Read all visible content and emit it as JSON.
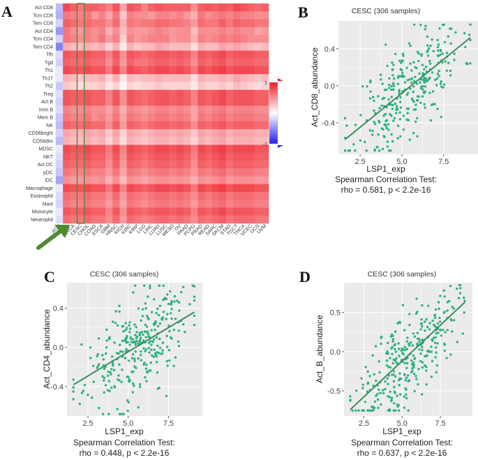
{
  "panel_labels": {
    "A": "A",
    "B": "B",
    "C": "C",
    "D": "D"
  },
  "colors": {
    "point": "#2bb07f",
    "line": "#3c8c5a",
    "high": "#ee1c25",
    "low": "#1f1fe6",
    "mid": "#ffffff",
    "arrow": "#4e8a32",
    "panel_bg": "#ebebeb",
    "grid": "#ffffff"
  },
  "chart_data": [
    {
      "id": "A",
      "type": "heatmap",
      "title": "",
      "rows": [
        "Act CD8",
        "Tcm CD8",
        "Tem CD8",
        "Act CD4",
        "Tcm CD4",
        "Tem CD4",
        "Tfh",
        "Tgd",
        "Th1",
        "Th17",
        "Th2",
        "Treg",
        "Act B",
        "Imm B",
        "Mem B",
        "NK",
        "CD56bright",
        "CD56dim",
        "MDSC",
        "NKT",
        "Act DC",
        "pDC",
        "iDC",
        "Macrophage",
        "Eosinophil",
        "Mast",
        "Monocyte",
        "Neutrophil"
      ],
      "columns": [
        "ACC",
        "BLCA",
        "BRCA",
        "CESC",
        "CHOL",
        "COAD",
        "ESCA",
        "GBM",
        "HNSC",
        "KICH",
        "KIRC",
        "KIRP",
        "LGG",
        "LIHC",
        "LUAD",
        "LUSC",
        "MESO",
        "OV",
        "PAAD",
        "PCPG",
        "PRAD",
        "READ",
        "SARC",
        "SKCM",
        "STAD",
        "TGCT",
        "THCA",
        "UCEC",
        "UCS",
        "UVM"
      ],
      "highlight_columns": [
        "CESC"
      ],
      "legend_max": "1",
      "legend_min": "-1",
      "value_range": [
        -1,
        1
      ],
      "values": [
        [
          -0.3,
          0.8,
          0.7,
          0.6,
          0.7,
          0.7,
          0.65,
          0.55,
          0.75,
          0.4,
          0.75,
          0.7,
          0.55,
          0.7,
          0.75,
          0.7,
          0.7,
          0.7,
          0.7,
          0.5,
          0.7,
          0.75,
          0.7,
          0.75,
          0.7,
          0.8,
          0.75,
          0.7,
          0.65,
          0.7
        ],
        [
          -0.35,
          0.6,
          0.55,
          0.55,
          0.6,
          0.45,
          0.55,
          0.4,
          0.6,
          0.25,
          0.55,
          0.5,
          0.5,
          0.45,
          0.55,
          0.55,
          0.5,
          0.55,
          0.45,
          0.35,
          0.6,
          0.5,
          0.55,
          0.6,
          0.55,
          0.6,
          0.55,
          0.55,
          0.5,
          0.5
        ],
        [
          -0.2,
          0.7,
          0.65,
          0.6,
          0.65,
          0.6,
          0.6,
          0.5,
          0.65,
          0.35,
          0.6,
          0.55,
          0.6,
          0.6,
          0.65,
          0.65,
          0.6,
          0.6,
          0.55,
          0.45,
          0.65,
          0.6,
          0.6,
          0.7,
          0.6,
          0.7,
          0.65,
          0.65,
          0.6,
          0.6
        ],
        [
          -0.45,
          0.6,
          0.5,
          0.45,
          0.55,
          0.5,
          0.55,
          0.35,
          0.5,
          0.3,
          0.5,
          0.45,
          0.45,
          0.5,
          0.55,
          0.5,
          0.45,
          0.5,
          0.5,
          0.3,
          0.5,
          0.5,
          0.5,
          0.55,
          0.5,
          0.55,
          0.5,
          0.5,
          0.4,
          0.45
        ],
        [
          -0.2,
          0.6,
          0.55,
          0.5,
          0.55,
          0.5,
          0.6,
          0.45,
          0.55,
          0.2,
          0.55,
          0.45,
          0.5,
          0.55,
          0.55,
          0.55,
          0.45,
          0.5,
          0.5,
          0.35,
          0.55,
          0.5,
          0.55,
          0.6,
          0.55,
          0.6,
          0.55,
          0.5,
          0.5,
          0.5
        ],
        [
          -0.55,
          0.35,
          0.3,
          0.3,
          0.35,
          0.3,
          0.35,
          0.2,
          0.35,
          0.1,
          0.35,
          0.25,
          0.3,
          0.3,
          0.4,
          0.35,
          0.3,
          0.3,
          0.3,
          0.15,
          0.35,
          0.3,
          0.3,
          0.4,
          0.35,
          0.4,
          0.35,
          0.3,
          0.25,
          0.3
        ],
        [
          -0.15,
          0.75,
          0.7,
          0.7,
          0.75,
          0.7,
          0.7,
          0.55,
          0.75,
          0.5,
          0.75,
          0.7,
          0.65,
          0.7,
          0.75,
          0.75,
          0.7,
          0.75,
          0.7,
          0.55,
          0.75,
          0.7,
          0.75,
          0.8,
          0.7,
          0.75,
          0.75,
          0.75,
          0.7,
          0.7
        ],
        [
          -0.2,
          0.7,
          0.65,
          0.65,
          0.7,
          0.65,
          0.65,
          0.5,
          0.7,
          0.45,
          0.7,
          0.6,
          0.6,
          0.65,
          0.7,
          0.7,
          0.65,
          0.7,
          0.65,
          0.5,
          0.7,
          0.65,
          0.7,
          0.75,
          0.65,
          0.7,
          0.7,
          0.7,
          0.65,
          0.65
        ],
        [
          -0.1,
          0.8,
          0.75,
          0.75,
          0.8,
          0.75,
          0.75,
          0.6,
          0.8,
          0.55,
          0.8,
          0.75,
          0.7,
          0.75,
          0.8,
          0.8,
          0.75,
          0.8,
          0.75,
          0.6,
          0.8,
          0.75,
          0.8,
          0.85,
          0.75,
          0.8,
          0.8,
          0.8,
          0.75,
          0.75
        ],
        [
          -0.1,
          0.35,
          0.3,
          0.25,
          0.3,
          0.3,
          0.35,
          0.2,
          0.35,
          0.1,
          0.3,
          0.25,
          0.3,
          0.3,
          0.35,
          0.3,
          0.3,
          0.3,
          0.3,
          0.15,
          0.35,
          0.3,
          0.3,
          0.35,
          0.3,
          0.4,
          0.35,
          0.3,
          0.25,
          0.3
        ],
        [
          -0.25,
          0.25,
          0.2,
          0.15,
          0.2,
          0.2,
          0.25,
          0.1,
          0.2,
          0.05,
          0.2,
          0.15,
          0.2,
          0.2,
          0.25,
          0.2,
          0.2,
          0.2,
          0.2,
          0.1,
          0.25,
          0.2,
          0.2,
          0.25,
          0.2,
          0.3,
          0.25,
          0.2,
          0.15,
          0.2
        ],
        [
          -0.15,
          0.75,
          0.7,
          0.7,
          0.75,
          0.7,
          0.7,
          0.55,
          0.75,
          0.5,
          0.75,
          0.7,
          0.65,
          0.7,
          0.75,
          0.75,
          0.7,
          0.75,
          0.7,
          0.55,
          0.75,
          0.7,
          0.75,
          0.8,
          0.7,
          0.75,
          0.75,
          0.75,
          0.7,
          0.7
        ],
        [
          -0.2,
          0.75,
          0.7,
          0.7,
          0.75,
          0.7,
          0.7,
          0.55,
          0.75,
          0.5,
          0.75,
          0.7,
          0.65,
          0.7,
          0.75,
          0.75,
          0.7,
          0.75,
          0.7,
          0.55,
          0.75,
          0.7,
          0.75,
          0.8,
          0.7,
          0.75,
          0.75,
          0.75,
          0.7,
          0.7
        ],
        [
          -0.15,
          0.55,
          0.5,
          0.5,
          0.55,
          0.5,
          0.5,
          0.4,
          0.55,
          0.35,
          0.55,
          0.5,
          0.45,
          0.5,
          0.55,
          0.55,
          0.5,
          0.55,
          0.5,
          0.4,
          0.55,
          0.5,
          0.55,
          0.6,
          0.5,
          0.55,
          0.55,
          0.55,
          0.5,
          0.5
        ],
        [
          -0.25,
          0.6,
          0.55,
          0.55,
          0.6,
          0.5,
          0.55,
          0.45,
          0.6,
          0.4,
          0.6,
          0.55,
          0.5,
          0.55,
          0.6,
          0.6,
          0.55,
          0.6,
          0.55,
          0.4,
          0.6,
          0.55,
          0.6,
          0.65,
          0.55,
          0.6,
          0.6,
          0.6,
          0.55,
          0.55
        ],
        [
          -0.3,
          0.7,
          0.65,
          0.65,
          0.7,
          0.65,
          0.65,
          0.5,
          0.7,
          0.45,
          0.7,
          0.65,
          0.6,
          0.65,
          0.7,
          0.7,
          0.65,
          0.7,
          0.65,
          0.5,
          0.7,
          0.65,
          0.7,
          0.75,
          0.65,
          0.7,
          0.7,
          0.7,
          0.65,
          0.65
        ],
        [
          -0.2,
          0.4,
          0.35,
          0.35,
          0.4,
          0.35,
          0.4,
          0.25,
          0.4,
          0.2,
          0.4,
          0.35,
          0.3,
          0.35,
          0.4,
          0.4,
          0.35,
          0.4,
          0.35,
          0.25,
          0.4,
          0.35,
          0.4,
          0.45,
          0.35,
          0.4,
          0.4,
          0.4,
          0.35,
          0.35
        ],
        [
          -0.3,
          0.35,
          0.3,
          0.3,
          0.35,
          0.3,
          0.35,
          0.2,
          0.35,
          0.15,
          0.35,
          0.3,
          0.25,
          0.3,
          0.35,
          0.35,
          0.3,
          0.35,
          0.3,
          0.2,
          0.35,
          0.3,
          0.35,
          0.4,
          0.3,
          0.35,
          0.35,
          0.35,
          0.3,
          0.3
        ],
        [
          -0.1,
          0.8,
          0.75,
          0.75,
          0.8,
          0.75,
          0.75,
          0.6,
          0.8,
          0.55,
          0.8,
          0.75,
          0.7,
          0.75,
          0.8,
          0.8,
          0.75,
          0.8,
          0.75,
          0.6,
          0.8,
          0.75,
          0.8,
          0.85,
          0.75,
          0.8,
          0.8,
          0.8,
          0.75,
          0.75
        ],
        [
          -0.15,
          0.75,
          0.7,
          0.7,
          0.75,
          0.7,
          0.7,
          0.55,
          0.75,
          0.5,
          0.75,
          0.7,
          0.65,
          0.7,
          0.75,
          0.75,
          0.7,
          0.75,
          0.7,
          0.55,
          0.75,
          0.7,
          0.75,
          0.8,
          0.7,
          0.75,
          0.75,
          0.75,
          0.7,
          0.7
        ],
        [
          -0.2,
          0.7,
          0.65,
          0.65,
          0.7,
          0.65,
          0.65,
          0.5,
          0.7,
          0.45,
          0.7,
          0.65,
          0.6,
          0.65,
          0.7,
          0.7,
          0.65,
          0.7,
          0.65,
          0.5,
          0.7,
          0.65,
          0.7,
          0.75,
          0.65,
          0.7,
          0.7,
          0.7,
          0.65,
          0.65
        ],
        [
          -0.25,
          0.6,
          0.55,
          0.55,
          0.6,
          0.55,
          0.55,
          0.45,
          0.6,
          0.4,
          0.6,
          0.55,
          0.5,
          0.55,
          0.6,
          0.6,
          0.55,
          0.6,
          0.55,
          0.45,
          0.6,
          0.55,
          0.6,
          0.65,
          0.55,
          0.6,
          0.6,
          0.6,
          0.55,
          0.55
        ],
        [
          -0.4,
          0.5,
          0.45,
          0.45,
          0.5,
          0.45,
          0.5,
          0.35,
          0.5,
          0.3,
          0.5,
          0.45,
          0.4,
          0.45,
          0.5,
          0.5,
          0.45,
          0.5,
          0.45,
          0.35,
          0.5,
          0.45,
          0.5,
          0.55,
          0.45,
          0.5,
          0.5,
          0.5,
          0.45,
          0.45
        ],
        [
          -0.1,
          0.8,
          0.75,
          0.75,
          0.8,
          0.75,
          0.75,
          0.6,
          0.8,
          0.55,
          0.8,
          0.75,
          0.7,
          0.75,
          0.8,
          0.8,
          0.75,
          0.8,
          0.75,
          0.6,
          0.8,
          0.75,
          0.8,
          0.85,
          0.75,
          0.8,
          0.8,
          0.8,
          0.75,
          0.75
        ],
        [
          -0.15,
          0.65,
          0.6,
          0.6,
          0.65,
          0.6,
          0.6,
          0.5,
          0.65,
          0.45,
          0.65,
          0.6,
          0.55,
          0.6,
          0.65,
          0.65,
          0.6,
          0.65,
          0.6,
          0.5,
          0.65,
          0.6,
          0.65,
          0.7,
          0.6,
          0.65,
          0.65,
          0.65,
          0.6,
          0.6
        ],
        [
          -0.2,
          0.6,
          0.55,
          0.55,
          0.6,
          0.55,
          0.55,
          0.45,
          0.6,
          0.4,
          0.6,
          0.55,
          0.5,
          0.55,
          0.6,
          0.6,
          0.55,
          0.6,
          0.55,
          0.45,
          0.6,
          0.55,
          0.6,
          0.65,
          0.55,
          0.6,
          0.6,
          0.6,
          0.55,
          0.55
        ],
        [
          -0.1,
          0.75,
          0.7,
          0.7,
          0.75,
          0.7,
          0.7,
          0.55,
          0.75,
          0.5,
          0.75,
          0.7,
          0.65,
          0.7,
          0.75,
          0.75,
          0.7,
          0.75,
          0.7,
          0.55,
          0.75,
          0.7,
          0.75,
          0.8,
          0.7,
          0.75,
          0.75,
          0.75,
          0.7,
          0.7
        ],
        [
          -0.15,
          0.65,
          0.6,
          0.6,
          0.65,
          0.6,
          0.6,
          0.5,
          0.65,
          0.45,
          0.65,
          0.6,
          0.55,
          0.6,
          0.65,
          0.65,
          0.6,
          0.65,
          0.6,
          0.5,
          0.65,
          0.6,
          0.65,
          0.7,
          0.6,
          0.65,
          0.65,
          0.65,
          0.6,
          0.6
        ]
      ]
    },
    {
      "id": "B",
      "type": "scatter",
      "title": "CESC (306 samples)",
      "xlabel": "LSP1_exp",
      "ylabel": "Act_CD8_abundance",
      "caption_line1": "Spearman Correlation Test:",
      "caption_line2": "rho = 0.581, p < 2.2e-16",
      "xlim": [
        1.2,
        9.6
      ],
      "ylim": [
        -0.74,
        0.7
      ],
      "xticks": [
        2.5,
        5.0,
        7.5
      ],
      "xtick_labels": [
        "2.5",
        "5.0",
        "7.5"
      ],
      "yticks": [
        -0.4,
        0.0,
        0.4
      ],
      "ytick_labels": [
        "-0.4",
        "0.0",
        "0.4"
      ],
      "fit_line": {
        "x": [
          1.6,
          9.1
        ],
        "y": [
          -0.58,
          0.52
        ]
      },
      "n_points": 306,
      "seed": 11,
      "gen": {
        "x_mean": 5.4,
        "x_sd": 1.6,
        "slope": 0.147,
        "noise": 0.26,
        "x_min": 1.6,
        "x_max": 9.1,
        "y_min": -0.7,
        "y_max": 0.66
      }
    },
    {
      "id": "C",
      "type": "scatter",
      "title": "CESC (306 samples)",
      "xlabel": "LSP1_exp",
      "ylabel": "Act_CD4_abundance",
      "caption_line1": "Spearman Correlation Test:",
      "caption_line2": "rho = 0.448, p < 2.2e-16",
      "xlim": [
        1.2,
        9.6
      ],
      "ylim": [
        -0.7,
        0.66
      ],
      "xticks": [
        2.5,
        5.0,
        7.5
      ],
      "xtick_labels": [
        "2.5",
        "5.0",
        "7.5"
      ],
      "yticks": [
        -0.4,
        0.0,
        0.4
      ],
      "ytick_labels": [
        "-0.4",
        "0.0",
        "0.4"
      ],
      "fit_line": {
        "x": [
          1.6,
          9.1
        ],
        "y": [
          -0.38,
          0.36
        ]
      },
      "n_points": 306,
      "seed": 23,
      "gen": {
        "x_mean": 5.5,
        "x_sd": 1.6,
        "slope": 0.1,
        "noise": 0.25,
        "x_min": 1.6,
        "x_max": 9.1,
        "y_min": -0.68,
        "y_max": 0.63
      }
    },
    {
      "id": "D",
      "type": "scatter",
      "title": "CESC (306 samples)",
      "xlabel": "LSP1_exp",
      "ylabel": "Act_B_abundance",
      "caption_line1": "Spearman Correlation Test:",
      "caption_line2": "rho = 0.637, p < 2.2e-16",
      "xlim": [
        1.2,
        9.6
      ],
      "ylim": [
        -0.82,
        0.88
      ],
      "xticks": [
        2.5,
        5.0,
        7.5
      ],
      "xtick_labels": [
        "2.5",
        "5.0",
        "7.5"
      ],
      "yticks": [
        -0.5,
        0.0,
        0.5
      ],
      "ytick_labels": [
        "-0.5",
        "0.0",
        "0.5"
      ],
      "fit_line": {
        "x": [
          1.6,
          9.1
        ],
        "y": [
          -0.74,
          0.63
        ]
      },
      "n_points": 306,
      "seed": 37,
      "gen": {
        "x_mean": 5.4,
        "x_sd": 1.6,
        "slope": 0.183,
        "noise": 0.29,
        "x_min": 1.6,
        "x_max": 9.1,
        "y_min": -0.75,
        "y_max": 0.85
      }
    }
  ]
}
